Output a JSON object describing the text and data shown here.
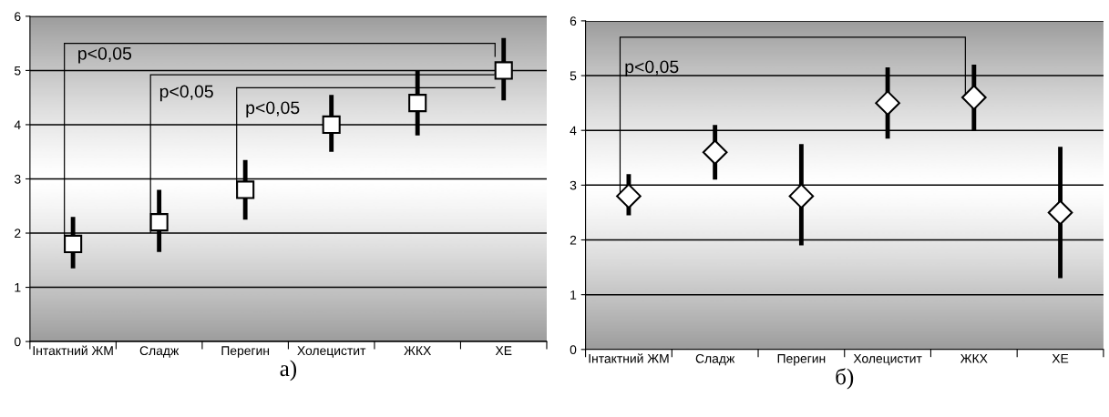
{
  "chart_data": [
    {
      "type": "scatter",
      "xlabel": "а)",
      "categories": [
        "Інтактний ЖМ",
        "Сладж",
        "Перегин",
        "Холецистит",
        "ЖКХ",
        "ХЕ"
      ],
      "series": [
        {
          "color": "#ffffff",
          "values": [
            1.8,
            2.2,
            2.8,
            4.0,
            4.4,
            5.0
          ],
          "errors": [
            [
              1.35,
              2.3
            ],
            [
              1.65,
              2.8
            ],
            [
              2.25,
              3.35
            ],
            [
              3.5,
              4.55
            ],
            [
              3.8,
              5.0
            ],
            [
              4.45,
              5.6
            ]
          ]
        }
      ],
      "marker": "square",
      "ylim": [
        0,
        6
      ],
      "yticks": [
        0,
        1,
        2,
        3,
        4,
        5,
        6
      ],
      "grid": "y",
      "legend": false,
      "annotations": [
        "p<0,05",
        "p<0,05",
        "p<0,05"
      ]
    },
    {
      "type": "scatter",
      "xlabel": "б)",
      "categories": [
        "Інтактний ЖМ",
        "Сладж",
        "Перегин",
        "Холецистит",
        "ЖКХ",
        "ХЕ"
      ],
      "series": [
        {
          "color": "#ffffff",
          "values": [
            2.8,
            3.6,
            2.8,
            4.5,
            4.6,
            2.5
          ],
          "errors": [
            [
              2.45,
              3.2
            ],
            [
              3.1,
              4.1
            ],
            [
              1.9,
              3.75
            ],
            [
              3.85,
              5.15
            ],
            [
              4.0,
              5.2
            ],
            [
              1.3,
              3.7
            ]
          ]
        }
      ],
      "marker": "diamond",
      "ylim": [
        0,
        6
      ],
      "yticks": [
        0,
        1,
        2,
        3,
        4,
        5,
        6
      ],
      "grid": "y",
      "legend": false,
      "annotations": [
        "p<0,05"
      ]
    }
  ]
}
